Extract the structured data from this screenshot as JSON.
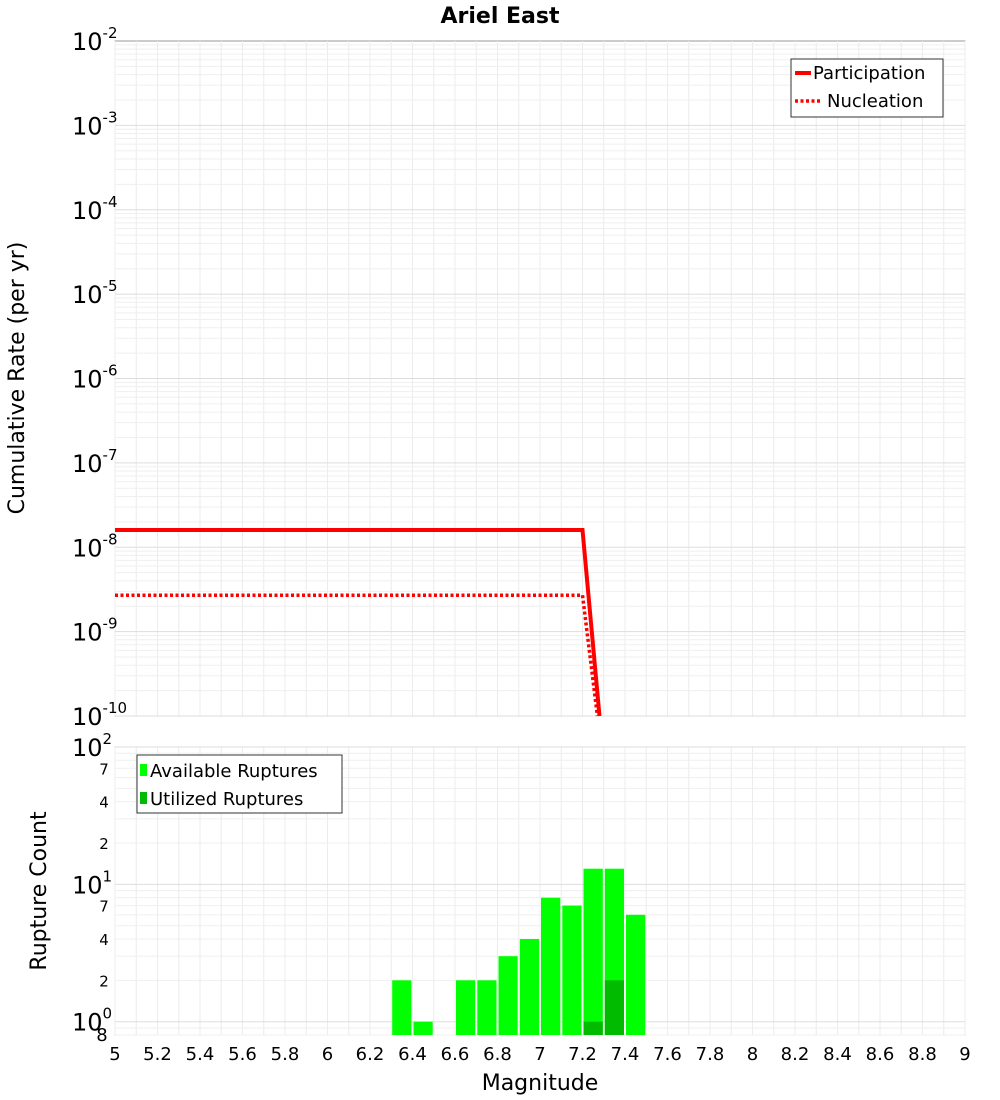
{
  "chart_data": [
    {
      "type": "line",
      "title": "Ariel East",
      "xlabel": "",
      "ylabel": "Cumulative Rate (per yr)",
      "xlim": [
        5,
        9
      ],
      "ylim": [
        1e-10,
        0.01
      ],
      "yscale": "log",
      "y_tick_labels": [
        {
          "base": "10",
          "exp": "-2"
        },
        {
          "base": "10",
          "exp": "-3"
        },
        {
          "base": "10",
          "exp": "-4"
        },
        {
          "base": "10",
          "exp": "-5"
        },
        {
          "base": "10",
          "exp": "-6"
        },
        {
          "base": "10",
          "exp": "-7"
        },
        {
          "base": "10",
          "exp": "-8"
        },
        {
          "base": "10",
          "exp": "-9"
        },
        {
          "base": "10",
          "exp": "-10"
        }
      ],
      "legend": {
        "position": "top-right",
        "entries": [
          "Participation",
          "Nucleation"
        ]
      },
      "series": [
        {
          "name": "Participation",
          "color": "#ff0000",
          "style": "solid",
          "x": [
            5.0,
            7.2,
            7.28
          ],
          "y": [
            1.6e-08,
            1.6e-08,
            1e-10
          ]
        },
        {
          "name": "Nucleation",
          "color": "#ff0000",
          "style": "dotted",
          "x": [
            5.0,
            7.2,
            7.27
          ],
          "y": [
            2.7e-09,
            2.7e-09,
            1e-10
          ]
        }
      ]
    },
    {
      "type": "bar",
      "title": "",
      "xlabel": "Magnitude",
      "ylabel": "Rupture Count",
      "xlim": [
        5,
        9
      ],
      "ylim": [
        0.8,
        100
      ],
      "yscale": "log",
      "x_ticks": [
        "5",
        "5.2",
        "5.4",
        "5.6",
        "5.8",
        "6",
        "6.2",
        "6.4",
        "6.6",
        "6.8",
        "7",
        "7.2",
        "7.4",
        "7.6",
        "7.8",
        "8",
        "8.2",
        "8.4",
        "8.6",
        "8.8",
        "9"
      ],
      "y_tick_labels": [
        {
          "base": "10",
          "exp": "2"
        },
        {
          "label": "7"
        },
        {
          "label": "4"
        },
        {
          "label": "2"
        },
        {
          "base": "10",
          "exp": "1"
        },
        {
          "label": "7"
        },
        {
          "label": "4"
        },
        {
          "label": "2"
        },
        {
          "base": "10",
          "exp": "0"
        },
        {
          "label": "8"
        }
      ],
      "legend": {
        "position": "top-left",
        "entries": [
          "Available Ruptures",
          "Utilized Ruptures"
        ]
      },
      "bin_width": 0.1,
      "series": [
        {
          "name": "Available Ruptures",
          "color": "#00ff00",
          "x": [
            6.35,
            6.45,
            6.65,
            6.75,
            6.85,
            6.95,
            7.05,
            7.15,
            7.25,
            7.35,
            7.45
          ],
          "values": [
            2,
            1,
            2,
            2,
            3,
            4,
            8,
            7,
            13,
            13,
            6
          ]
        },
        {
          "name": "Utilized Ruptures",
          "color": "#00bb00",
          "x": [
            7.25,
            7.35
          ],
          "values": [
            1,
            2
          ]
        }
      ]
    }
  ]
}
